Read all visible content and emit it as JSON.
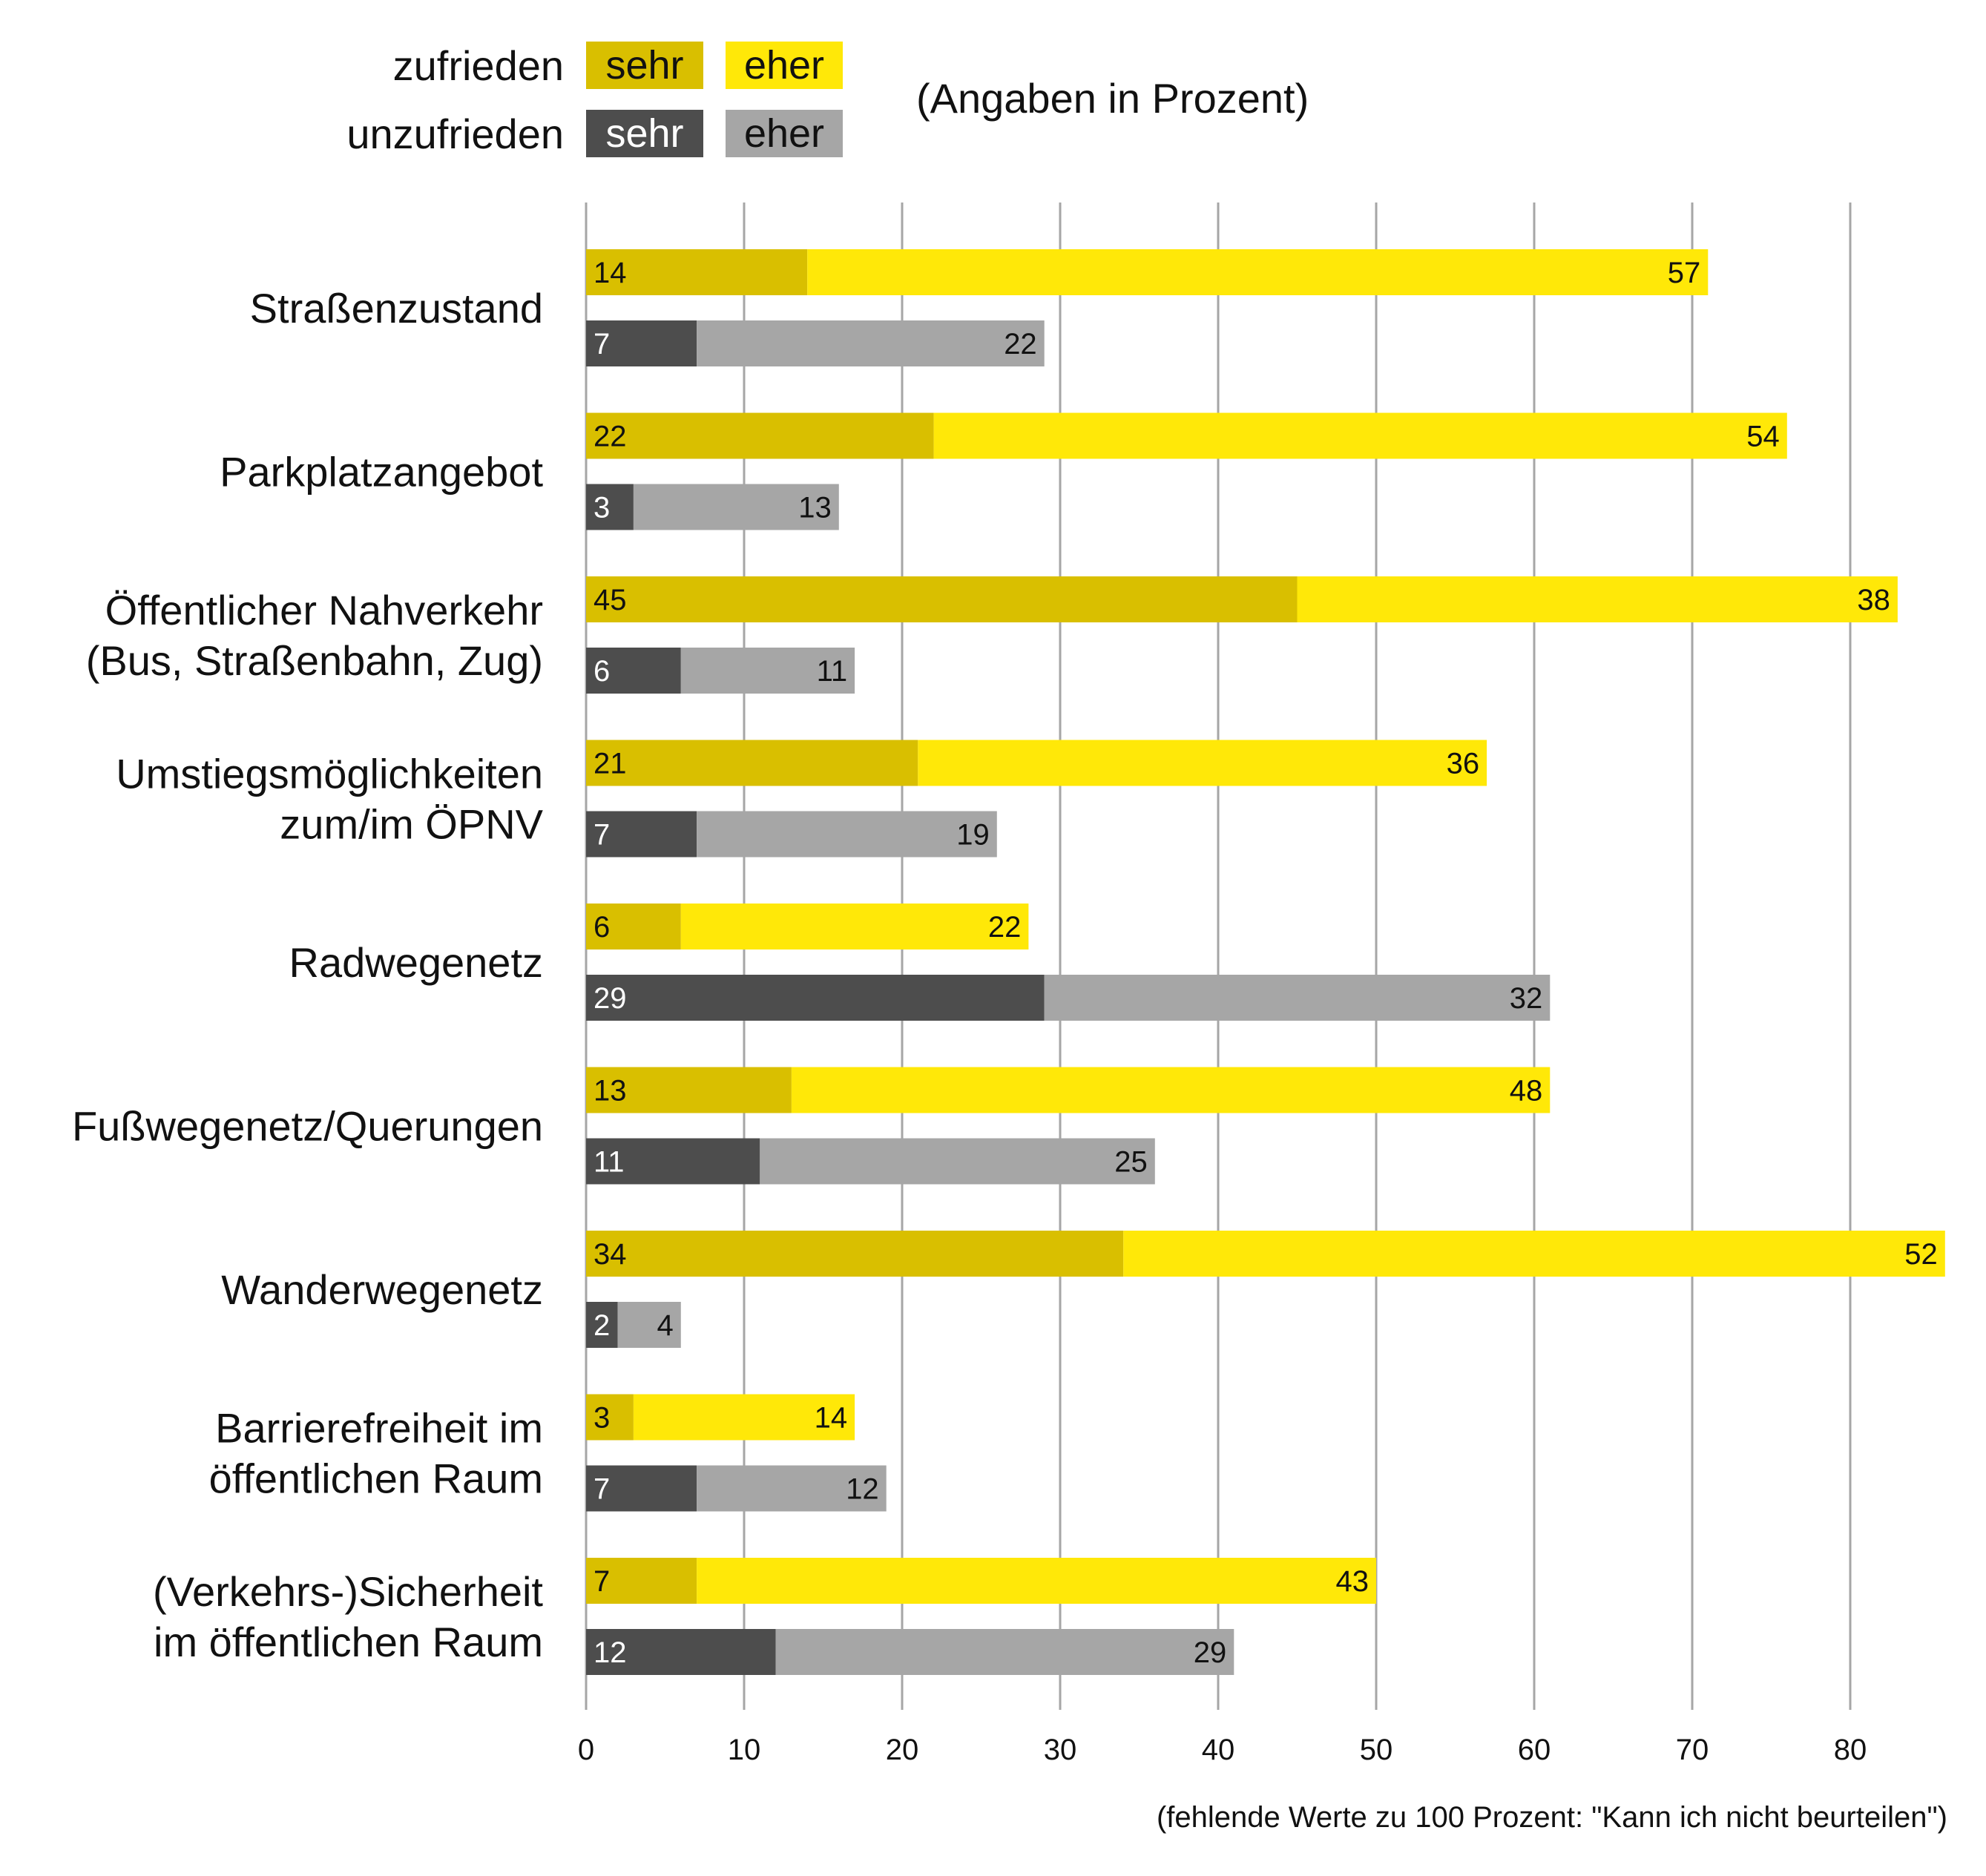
{
  "legend": {
    "rows": [
      {
        "label": "zufrieden",
        "items": [
          {
            "text": "sehr",
            "color": "#D9BF00",
            "text_color": "#111111"
          },
          {
            "text": "eher",
            "color": "#FFE808",
            "text_color": "#111111"
          }
        ]
      },
      {
        "label": "unzufrieden",
        "items": [
          {
            "text": "sehr",
            "color": "#4D4D4D",
            "text_color": "#ffffff"
          },
          {
            "text": "eher",
            "color": "#A6A6A6",
            "text_color": "#111111"
          }
        ]
      }
    ],
    "unit_note": "(Angaben in Prozent)"
  },
  "footnote": "(fehlende Werte zu 100 Prozent: \"Kann ich nicht beurteilen\")",
  "chart_data": {
    "type": "bar",
    "orientation": "horizontal",
    "stacked": true,
    "title": "",
    "xlabel": "",
    "ylabel": "",
    "xlim": [
      0,
      86
    ],
    "x_ticks": [
      0,
      10,
      20,
      30,
      40,
      50,
      60,
      70,
      80
    ],
    "grid": "vertical",
    "legend_position": "top-left",
    "categories": [
      [
        "Straßenzustand"
      ],
      [
        "Parkplatzangebot"
      ],
      [
        "Öffentlicher Nahverkehr",
        "(Bus, Straßenbahn, Zug)"
      ],
      [
        "Umstiegsmöglichkeiten",
        "zum/im ÖPNV"
      ],
      [
        "Radwegenetz"
      ],
      [
        "Fußwegenetz/Querungen"
      ],
      [
        "Wanderwegenetz"
      ],
      [
        "Barrierefreiheit im",
        "öffentlichen Raum"
      ],
      [
        "(Verkehrs-)Sicherheit",
        "im öffentlichen Raum"
      ]
    ],
    "bar_groups": [
      {
        "name": "zufrieden",
        "series": [
          {
            "name": "zufrieden sehr",
            "color": "#D9BF00",
            "label_color": "#111111",
            "values": [
              14,
              22,
              45,
              21,
              6,
              13,
              34,
              3,
              7
            ]
          },
          {
            "name": "zufrieden eher",
            "color": "#FFE808",
            "label_color": "#111111",
            "values": [
              57,
              54,
              38,
              36,
              22,
              48,
              52,
              14,
              43
            ]
          }
        ]
      },
      {
        "name": "unzufrieden",
        "series": [
          {
            "name": "unzufrieden sehr",
            "color": "#4D4D4D",
            "label_color": "#ffffff",
            "values": [
              7,
              3,
              6,
              7,
              29,
              11,
              2,
              7,
              12
            ]
          },
          {
            "name": "unzufrieden eher",
            "color": "#A6A6A6",
            "label_color": "#111111",
            "values": [
              22,
              13,
              11,
              19,
              32,
              25,
              4,
              12,
              29
            ]
          }
        ]
      }
    ]
  }
}
